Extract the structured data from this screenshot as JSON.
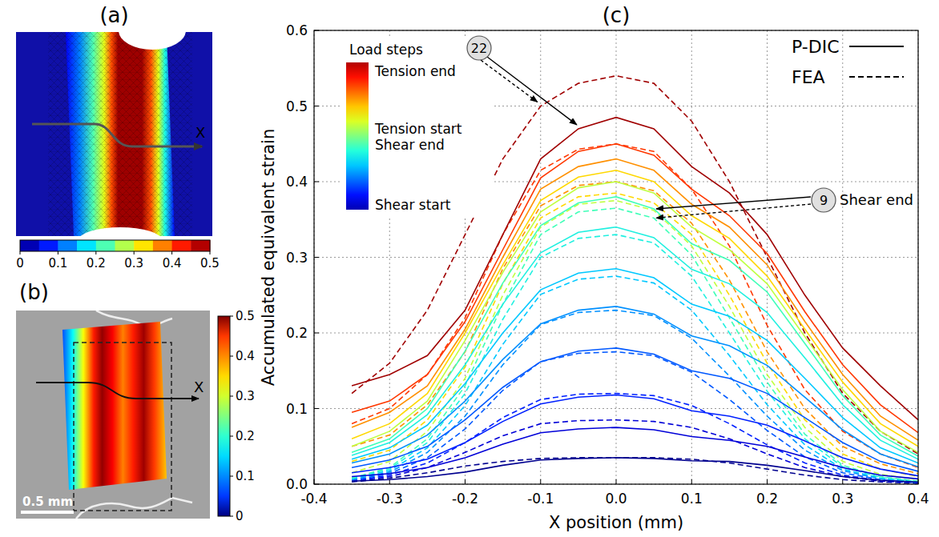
{
  "chart_data": [
    {
      "type": "contour-image",
      "panel_label": "(a)",
      "axis_label": "X",
      "colorbar_range": [
        0,
        0.5
      ],
      "colorbar_ticks": [
        0,
        0.1,
        0.2,
        0.3,
        0.4,
        0.5
      ]
    },
    {
      "type": "dic-image",
      "panel_label": "(b)",
      "axis_label": "X",
      "scale_bar": "0.5 mm",
      "colorbar_range": [
        0,
        0.5
      ],
      "colorbar_ticks": [
        0,
        0.1,
        0.2,
        0.3,
        0.4,
        0.5
      ]
    },
    {
      "type": "line",
      "panel_label": "(c)",
      "x_label": "X position (mm)",
      "y_label": "Accumulated equivalent strain",
      "xlim": [
        -0.4,
        0.4
      ],
      "ylim": [
        0,
        0.6
      ],
      "xticks": [
        -0.4,
        -0.3,
        -0.2,
        -0.1,
        {
          "value": 0,
          "label": "0.0"
        },
        0.1,
        0.2,
        0.3,
        0.4
      ],
      "yticks": [
        {
          "value": 0,
          "label": "0.0"
        },
        0.1,
        0.2,
        0.3,
        0.4,
        0.5,
        0.6
      ],
      "grid": true,
      "legend": "upper right",
      "colorbar": {
        "title": "Load steps",
        "labels": [
          "Tension end",
          "Tension start",
          "Shear end",
          "Shear start"
        ]
      },
      "annotations": [
        {
          "text": "22"
        },
        {
          "text": "9",
          "label": "Shear end"
        }
      ],
      "x": [
        -0.35,
        -0.3,
        -0.25,
        -0.2,
        -0.15,
        -0.1,
        -0.05,
        0,
        0.05,
        0.1,
        0.15,
        0.2,
        0.25,
        0.3,
        0.35,
        0.4
      ],
      "series": [
        {
          "name": "P-DIC",
          "line_style": "solid",
          "color": "#00008f",
          "values": [
            0.004,
            0.006,
            0.01,
            0.016,
            0.025,
            0.032,
            0.034,
            0.035,
            0.034,
            0.031,
            0.03,
            0.025,
            0.018,
            0.01,
            0.005,
            0.003
          ]
        },
        {
          "name": "P-DIC",
          "line_style": "solid",
          "color": "#0000d8",
          "values": [
            0.01,
            0.014,
            0.022,
            0.035,
            0.053,
            0.068,
            0.073,
            0.075,
            0.072,
            0.063,
            0.058,
            0.05,
            0.036,
            0.022,
            0.012,
            0.007
          ]
        },
        {
          "name": "P-DIC",
          "line_style": "solid",
          "color": "#0020ff",
          "values": [
            0.015,
            0.022,
            0.033,
            0.055,
            0.083,
            0.106,
            0.115,
            0.118,
            0.113,
            0.097,
            0.09,
            0.078,
            0.057,
            0.035,
            0.02,
            0.011
          ]
        },
        {
          "name": "P-DIC",
          "line_style": "solid",
          "color": "#0058ff",
          "values": [
            0.022,
            0.032,
            0.05,
            0.085,
            0.128,
            0.162,
            0.176,
            0.18,
            0.172,
            0.15,
            0.14,
            0.12,
            0.088,
            0.055,
            0.03,
            0.017
          ]
        },
        {
          "name": "P-DIC",
          "line_style": "solid",
          "color": "#0090ff",
          "values": [
            0.028,
            0.04,
            0.065,
            0.11,
            0.165,
            0.212,
            0.23,
            0.235,
            0.225,
            0.196,
            0.183,
            0.157,
            0.115,
            0.072,
            0.04,
            0.023
          ]
        },
        {
          "name": "P-DIC",
          "line_style": "solid",
          "color": "#00c8ff",
          "values": [
            0.033,
            0.048,
            0.078,
            0.133,
            0.2,
            0.257,
            0.279,
            0.285,
            0.273,
            0.238,
            0.222,
            0.19,
            0.14,
            0.088,
            0.048,
            0.028
          ]
        },
        {
          "name": "P-DIC",
          "line_style": "solid",
          "color": "#20f0e0",
          "values": [
            0.038,
            0.055,
            0.092,
            0.158,
            0.238,
            0.306,
            0.333,
            0.34,
            0.326,
            0.284,
            0.265,
            0.227,
            0.167,
            0.105,
            0.058,
            0.033
          ]
        },
        {
          "name": "P-DIC",
          "line_style": "solid",
          "color": "#40ffb8",
          "values": [
            0.042,
            0.06,
            0.1,
            0.176,
            0.266,
            0.342,
            0.372,
            0.38,
            0.364,
            0.318,
            0.296,
            0.254,
            0.186,
            0.117,
            0.065,
            0.037
          ]
        },
        {
          "name": "P-DIC",
          "line_style": "solid",
          "color": "#c0ff40",
          "values": [
            0.05,
            0.07,
            0.11,
            0.19,
            0.28,
            0.36,
            0.392,
            0.4,
            0.385,
            0.34,
            0.31,
            0.265,
            0.195,
            0.125,
            0.07,
            0.042
          ]
        },
        {
          "name": "P-DIC",
          "line_style": "solid",
          "color": "#ffd800",
          "values": [
            0.06,
            0.08,
            0.12,
            0.2,
            0.29,
            0.375,
            0.406,
            0.415,
            0.4,
            0.355,
            0.325,
            0.275,
            0.205,
            0.135,
            0.08,
            0.05
          ]
        },
        {
          "name": "P-DIC",
          "line_style": "solid",
          "color": "#ff9000",
          "values": [
            0.075,
            0.095,
            0.13,
            0.205,
            0.3,
            0.39,
            0.42,
            0.43,
            0.415,
            0.37,
            0.34,
            0.29,
            0.215,
            0.145,
            0.09,
            0.058
          ]
        },
        {
          "name": "P-DIC",
          "line_style": "solid",
          "color": "#ff3800",
          "values": [
            0.095,
            0.11,
            0.145,
            0.215,
            0.31,
            0.405,
            0.44,
            0.45,
            0.435,
            0.39,
            0.355,
            0.305,
            0.228,
            0.158,
            0.105,
            0.068
          ]
        },
        {
          "name": "P-DIC",
          "line_style": "solid",
          "color": "#a00000",
          "values": [
            0.13,
            0.145,
            0.17,
            0.23,
            0.33,
            0.43,
            0.47,
            0.485,
            0.47,
            0.42,
            0.385,
            0.33,
            0.25,
            0.18,
            0.13,
            0.085
          ]
        },
        {
          "name": "FEA",
          "line_style": "dashed",
          "color": "#00008f",
          "values": [
            0.003,
            0.008,
            0.015,
            0.024,
            0.03,
            0.034,
            0.035,
            0.035,
            0.035,
            0.033,
            0.028,
            0.02,
            0.012,
            0.006,
            0.003,
            0.001
          ]
        },
        {
          "name": "FEA",
          "line_style": "dashed",
          "color": "#0000d8",
          "values": [
            0.004,
            0.01,
            0.022,
            0.042,
            0.064,
            0.08,
            0.084,
            0.085,
            0.083,
            0.075,
            0.06,
            0.04,
            0.022,
            0.01,
            0.004,
            0.002
          ]
        },
        {
          "name": "FEA",
          "line_style": "dashed",
          "color": "#0020ff",
          "values": [
            0.004,
            0.012,
            0.028,
            0.055,
            0.088,
            0.112,
            0.119,
            0.12,
            0.117,
            0.104,
            0.08,
            0.052,
            0.028,
            0.012,
            0.005,
            0.002
          ]
        },
        {
          "name": "FEA",
          "line_style": "dashed",
          "color": "#0058ff",
          "values": [
            0.005,
            0.014,
            0.035,
            0.073,
            0.124,
            0.162,
            0.173,
            0.175,
            0.17,
            0.148,
            0.112,
            0.071,
            0.036,
            0.015,
            0.006,
            0.002
          ]
        },
        {
          "name": "FEA",
          "line_style": "dashed",
          "color": "#0090ff",
          "values": [
            0.006,
            0.016,
            0.042,
            0.09,
            0.158,
            0.211,
            0.227,
            0.23,
            0.223,
            0.193,
            0.143,
            0.09,
            0.045,
            0.018,
            0.007,
            0.003
          ]
        },
        {
          "name": "FEA",
          "line_style": "dashed",
          "color": "#00c8ff",
          "values": [
            0.007,
            0.018,
            0.048,
            0.104,
            0.185,
            0.251,
            0.271,
            0.275,
            0.266,
            0.23,
            0.17,
            0.105,
            0.052,
            0.02,
            0.008,
            0.003
          ]
        },
        {
          "name": "FEA",
          "line_style": "dashed",
          "color": "#20f0e0",
          "values": [
            0.008,
            0.02,
            0.055,
            0.12,
            0.218,
            0.3,
            0.325,
            0.33,
            0.319,
            0.275,
            0.2,
            0.123,
            0.06,
            0.023,
            0.009,
            0.003
          ]
        },
        {
          "name": "FEA",
          "line_style": "dashed",
          "color": "#40ffb8",
          "values": [
            0.008,
            0.022,
            0.06,
            0.13,
            0.238,
            0.33,
            0.36,
            0.365,
            0.352,
            0.303,
            0.22,
            0.135,
            0.066,
            0.025,
            0.01,
            0.004
          ]
        },
        {
          "name": "FEA",
          "line_style": "dashed",
          "color": "#c0ff40",
          "values": [
            0.015,
            0.03,
            0.07,
            0.14,
            0.25,
            0.34,
            0.37,
            0.375,
            0.362,
            0.315,
            0.235,
            0.145,
            0.075,
            0.03,
            0.013,
            0.006
          ]
        },
        {
          "name": "FEA",
          "line_style": "dashed",
          "color": "#ffd800",
          "values": [
            0.03,
            0.045,
            0.085,
            0.155,
            0.265,
            0.352,
            0.38,
            0.385,
            0.372,
            0.33,
            0.25,
            0.16,
            0.085,
            0.04,
            0.02,
            0.01
          ]
        },
        {
          "name": "FEA",
          "line_style": "dashed",
          "color": "#ff9000",
          "values": [
            0.05,
            0.065,
            0.105,
            0.175,
            0.285,
            0.368,
            0.395,
            0.4,
            0.388,
            0.345,
            0.27,
            0.175,
            0.1,
            0.05,
            0.027,
            0.014
          ]
        },
        {
          "name": "FEA",
          "line_style": "dashed",
          "color": "#ff3800",
          "values": [
            0.08,
            0.1,
            0.145,
            0.22,
            0.33,
            0.415,
            0.443,
            0.45,
            0.44,
            0.39,
            0.315,
            0.21,
            0.125,
            0.07,
            0.04,
            0.022
          ]
        },
        {
          "name": "FEA",
          "line_style": "dashed",
          "color": "#a00000",
          "values": [
            0.12,
            0.16,
            0.23,
            0.33,
            0.43,
            0.5,
            0.53,
            0.54,
            0.53,
            0.48,
            0.4,
            0.3,
            0.2,
            0.12,
            0.07,
            0.04
          ]
        }
      ]
    }
  ]
}
